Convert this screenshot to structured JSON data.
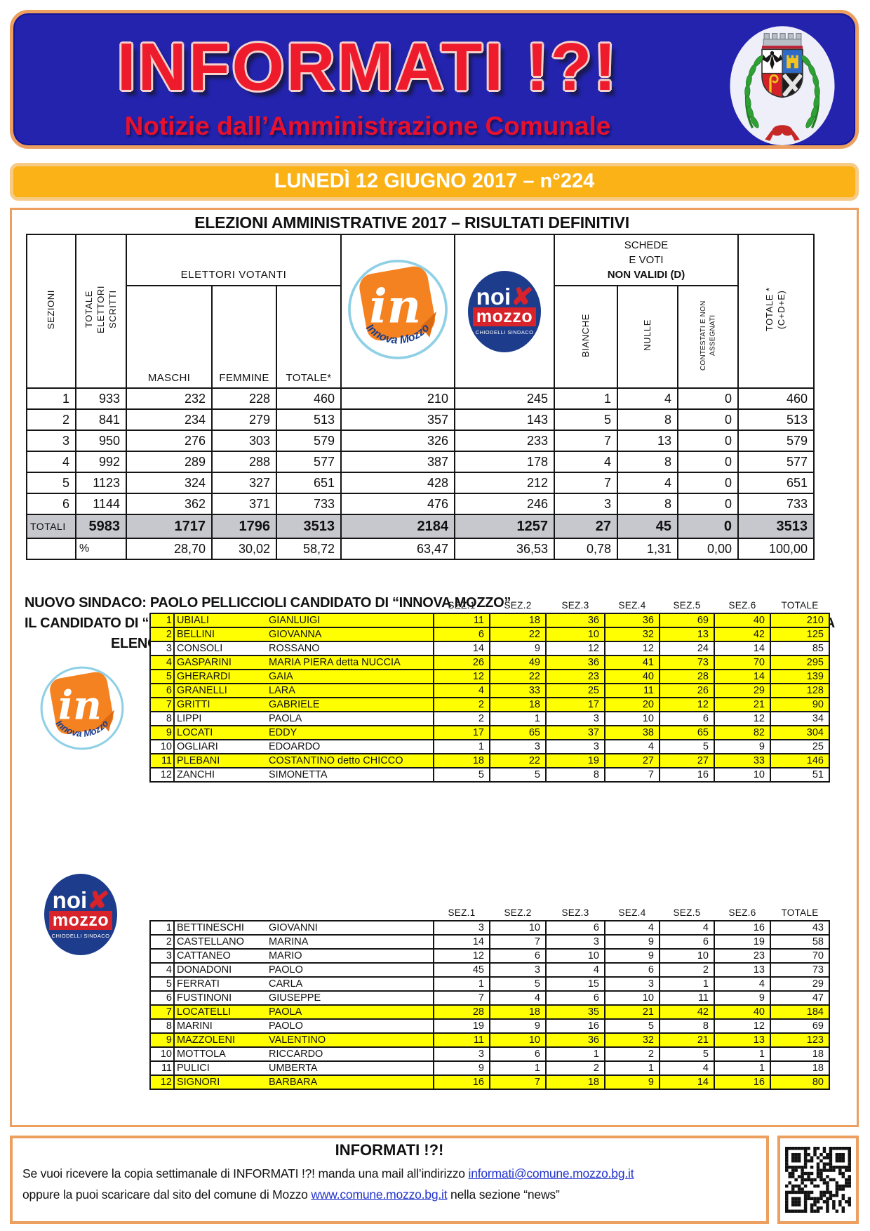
{
  "header": {
    "title": "INFORMATI !?!",
    "subtitle": "Notizie dall’Amministrazione Comunale"
  },
  "banner": {
    "text": "LUNEDÌ 12 GIUGNO 2017 – n°224"
  },
  "results": {
    "title": "ELEZIONI AMMINISTRATIVE 2017 – RISULTATI DEFINITIVI",
    "table": {
      "headers": {
        "sezioni": "SEZIONI",
        "tot_elettori": "TOTALE ELETTORI SCRITTI",
        "group_elettori": "ELETTORI VOTANTI",
        "maschi": "MASCHI",
        "femmine": "FEMMINE",
        "totale": "TOTALE*",
        "schede_lines": [
          "SCHEDE",
          "E VOTI",
          "NON VALIDI (D)"
        ],
        "bianche": "BIANCHE",
        "nulle": "NULLE",
        "contestati": "CONTESTATI E NON ASSEGNATI",
        "totale_cde": "TOTALE * (C+D+E)"
      },
      "rows": [
        [
          "1",
          "933",
          "232",
          "228",
          "460",
          "210",
          "245",
          "1",
          "4",
          "0",
          "460"
        ],
        [
          "2",
          "841",
          "234",
          "279",
          "513",
          "357",
          "143",
          "5",
          "8",
          "0",
          "513"
        ],
        [
          "3",
          "950",
          "276",
          "303",
          "579",
          "326",
          "233",
          "7",
          "13",
          "0",
          "579"
        ],
        [
          "4",
          "992",
          "289",
          "288",
          "577",
          "387",
          "178",
          "4",
          "8",
          "0",
          "577"
        ],
        [
          "5",
          "1123",
          "324",
          "327",
          "651",
          "428",
          "212",
          "7",
          "4",
          "0",
          "651"
        ],
        [
          "6",
          "1144",
          "362",
          "371",
          "733",
          "476",
          "246",
          "3",
          "8",
          "0",
          "733"
        ]
      ],
      "totals_label": "TOTALI",
      "totals": [
        "5983",
        "1717",
        "1796",
        "3513",
        "2184",
        "1257",
        "27",
        "45",
        "0",
        "3513"
      ],
      "percent_label": "%",
      "percents": [
        "28,70",
        "30,02",
        "58,72",
        "63,47",
        "36,53",
        "0,78",
        "1,31",
        "0,00",
        "100,00"
      ]
    }
  },
  "announcement": {
    "line1": "NUOVO SINDACO: PAOLO PELLICCIOLI CANDIDATO DI  “INNOVA MOZZO”",
    "line2": "IL CANDIDATO DI “NOI PER MOZZO”ALESSANDRO CHIODELLI ENTRA IN CONSIGLIO COME CONSIGLIERE DI MINORANZA",
    "line3": "ELENCO DEI VOTI DI PREFERENZA – IN GIALLO I CONSIGLIERI ELETTI IN CONSIGLIO COMUNALE"
  },
  "preferences": {
    "col_headers": [
      "SEZ.1",
      "SEZ.2",
      "SEZ.3",
      "SEZ.4",
      "SEZ.5",
      "SEZ.6",
      "TOTALE"
    ],
    "innova": {
      "rows": [
        {
          "n": "1",
          "surname": "UBIALI",
          "given": "GIANLUIGI",
          "votes": [
            "11",
            "18",
            "36",
            "36",
            "69",
            "40"
          ],
          "total": "210",
          "elected": true
        },
        {
          "n": "2",
          "surname": "BELLINI",
          "given": "GIOVANNA",
          "votes": [
            "6",
            "22",
            "10",
            "32",
            "13",
            "42"
          ],
          "total": "125",
          "elected": true
        },
        {
          "n": "3",
          "surname": "CONSOLI",
          "given": "ROSSANO",
          "votes": [
            "14",
            "9",
            "12",
            "12",
            "24",
            "14"
          ],
          "total": "85",
          "elected": false
        },
        {
          "n": "4",
          "surname": "GASPARINI",
          "given": "MARIA PIERA detta NUCCIA",
          "votes": [
            "26",
            "49",
            "36",
            "41",
            "73",
            "70"
          ],
          "total": "295",
          "elected": true
        },
        {
          "n": "5",
          "surname": "GHERARDI",
          "given": "GAIA",
          "votes": [
            "12",
            "22",
            "23",
            "40",
            "28",
            "14"
          ],
          "total": "139",
          "elected": true
        },
        {
          "n": "6",
          "surname": "GRANELLI",
          "given": "LARA",
          "votes": [
            "4",
            "33",
            "25",
            "11",
            "26",
            "29"
          ],
          "total": "128",
          "elected": true
        },
        {
          "n": "7",
          "surname": "GRITTI",
          "given": "GABRIELE",
          "votes": [
            "2",
            "18",
            "17",
            "20",
            "12",
            "21"
          ],
          "total": "90",
          "elected": true
        },
        {
          "n": "8",
          "surname": "LIPPI",
          "given": "PAOLA",
          "votes": [
            "2",
            "1",
            "3",
            "10",
            "6",
            "12"
          ],
          "total": "34",
          "elected": false
        },
        {
          "n": "9",
          "surname": "LOCATI",
          "given": "EDDY",
          "votes": [
            "17",
            "65",
            "37",
            "38",
            "65",
            "82"
          ],
          "total": "304",
          "elected": true
        },
        {
          "n": "10",
          "surname": "OGLIARI",
          "given": "EDOARDO",
          "votes": [
            "1",
            "3",
            "3",
            "4",
            "5",
            "9"
          ],
          "total": "25",
          "elected": false
        },
        {
          "n": "11",
          "surname": "PLEBANI",
          "given": "COSTANTINO detto CHICCO",
          "votes": [
            "18",
            "22",
            "19",
            "27",
            "27",
            "33"
          ],
          "total": "146",
          "elected": true
        },
        {
          "n": "12",
          "surname": "ZANCHI",
          "given": "SIMONETTA",
          "votes": [
            "5",
            "5",
            "8",
            "7",
            "16",
            "10"
          ],
          "total": "51",
          "elected": false
        }
      ]
    },
    "noi": {
      "rows": [
        {
          "n": "1",
          "surname": "BETTINESCHI",
          "given": "GIOVANNI",
          "votes": [
            "3",
            "10",
            "6",
            "4",
            "4",
            "16"
          ],
          "total": "43",
          "elected": false
        },
        {
          "n": "2",
          "surname": "CASTELLANO",
          "given": "MARINA",
          "votes": [
            "14",
            "7",
            "3",
            "9",
            "6",
            "19"
          ],
          "total": "58",
          "elected": false
        },
        {
          "n": "3",
          "surname": "CATTANEO",
          "given": "MARIO",
          "votes": [
            "12",
            "6",
            "10",
            "9",
            "10",
            "23"
          ],
          "total": "70",
          "elected": false
        },
        {
          "n": "4",
          "surname": "DONADONI",
          "given": "PAOLO",
          "votes": [
            "45",
            "3",
            "4",
            "6",
            "2",
            "13"
          ],
          "total": "73",
          "elected": false
        },
        {
          "n": "5",
          "surname": "FERRATI",
          "given": "CARLA",
          "votes": [
            "1",
            "5",
            "15",
            "3",
            "1",
            "4"
          ],
          "total": "29",
          "elected": false
        },
        {
          "n": "6",
          "surname": "FUSTINONI",
          "given": "GIUSEPPE",
          "votes": [
            "7",
            "4",
            "6",
            "10",
            "11",
            "9"
          ],
          "total": "47",
          "elected": false
        },
        {
          "n": "7",
          "surname": "LOCATELLI",
          "given": "PAOLA",
          "votes": [
            "28",
            "18",
            "35",
            "21",
            "42",
            "40"
          ],
          "total": "184",
          "elected": true
        },
        {
          "n": "8",
          "surname": "MARINI",
          "given": "PAOLO",
          "votes": [
            "19",
            "9",
            "16",
            "5",
            "8",
            "12"
          ],
          "total": "69",
          "elected": false
        },
        {
          "n": "9",
          "surname": "MAZZOLENI",
          "given": "VALENTINO",
          "votes": [
            "11",
            "10",
            "36",
            "32",
            "21",
            "13"
          ],
          "total": "123",
          "elected": true
        },
        {
          "n": "10",
          "surname": "MOTTOLA",
          "given": "RICCARDO",
          "votes": [
            "3",
            "6",
            "1",
            "2",
            "5",
            "1"
          ],
          "total": "18",
          "elected": false
        },
        {
          "n": "11",
          "surname": "PULICI",
          "given": "UMBERTA",
          "votes": [
            "9",
            "1",
            "2",
            "1",
            "4",
            "1"
          ],
          "total": "18",
          "elected": false
        },
        {
          "n": "12",
          "surname": "SIGNORI",
          "given": "BARBARA",
          "votes": [
            "16",
            "7",
            "18",
            "9",
            "14",
            "16"
          ],
          "total": "80",
          "elected": true
        }
      ]
    }
  },
  "logos": {
    "innova": {
      "mark": "in",
      "ring_text": "Innova Mozzo"
    },
    "noi": {
      "line1": "noi",
      "x": "✘",
      "line2": "mozzo",
      "line3": "CHIODELLI SINDACO"
    }
  },
  "footer": {
    "title": "INFORMATI !?!",
    "line1_text": "Se vuoi ricevere la copia settimanale di INFORMATI !?! manda una mail all’indirizzo ",
    "line1_link": "informati@comune.mozzo.bg.it",
    "line2_text": "oppure la puoi scaricare dal sito del comune di Mozzo ",
    "line2_link": "www.comune.mozzo.bg.it",
    "line2_suffix": " nella sezione “news”"
  },
  "colors": {
    "header_blue": "#2323AE",
    "accent_red": "#EE1B2D",
    "frame_orange": "#EC9F5E",
    "banner_orange": "#FBB217",
    "highlight_yellow": "#FFFF02",
    "totals_gray": "#C7C7CE",
    "link_blue": "#2233CC"
  }
}
